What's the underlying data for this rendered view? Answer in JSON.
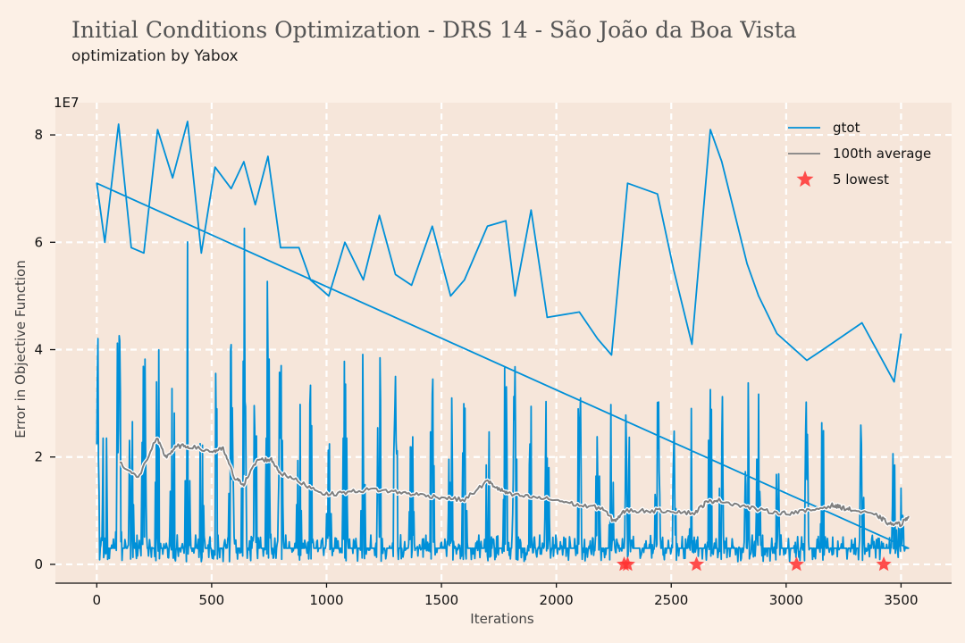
{
  "chart_data": {
    "type": "line",
    "title": "Initial Conditions Optimization - DRS 14 - São João da Boa Vista",
    "subtitle": "optimization by Yabox",
    "xlabel": "Iterations",
    "ylabel": "Error in Objective Function",
    "y_scale_label": "1E7",
    "xlim": [
      -180,
      3720
    ],
    "ylim": [
      -0.35,
      8.6
    ],
    "x_ticks": [
      0,
      500,
      1000,
      1500,
      2000,
      2500,
      3000,
      3500
    ],
    "y_ticks": [
      0,
      2,
      4,
      6,
      8
    ],
    "x_tick_labels": [
      "0",
      "500",
      "1000",
      "1500",
      "2000",
      "2500",
      "3000",
      "3500"
    ],
    "y_tick_labels": [
      "0",
      "2",
      "4",
      "6",
      "8"
    ],
    "grid": true,
    "legend_position": "top-right",
    "series": [
      {
        "name": "gtot",
        "color": "#0090d8",
        "n_points": 3534,
        "x_range": [
          0,
          3533
        ],
        "peaks": [
          [
            0,
            7.1
          ],
          [
            35,
            6.0
          ],
          [
            95,
            8.2
          ],
          [
            150,
            5.9
          ],
          [
            205,
            5.8
          ],
          [
            265,
            8.1
          ],
          [
            330,
            7.2
          ],
          [
            395,
            8.25
          ],
          [
            455,
            5.8
          ],
          [
            515,
            7.4
          ],
          [
            585,
            7.0
          ],
          [
            640,
            7.5
          ],
          [
            690,
            6.7
          ],
          [
            745,
            7.6
          ],
          [
            800,
            5.9
          ],
          [
            880,
            5.9
          ],
          [
            930,
            5.3
          ],
          [
            1010,
            5.0
          ],
          [
            1080,
            6.0
          ],
          [
            1160,
            5.3
          ],
          [
            1230,
            6.5
          ],
          [
            1300,
            5.4
          ],
          [
            1370,
            5.2
          ],
          [
            1460,
            6.3
          ],
          [
            1540,
            5.0
          ],
          [
            1600,
            5.3
          ],
          [
            1700,
            6.3
          ],
          [
            1780,
            6.4
          ],
          [
            1820,
            5.0
          ],
          [
            1890,
            6.6
          ],
          [
            1960,
            4.6
          ],
          [
            2100,
            4.7
          ],
          [
            2180,
            4.2
          ],
          [
            2240,
            3.9
          ],
          [
            2310,
            7.1
          ],
          [
            2440,
            6.9
          ],
          [
            2510,
            5.5
          ],
          [
            2590,
            4.1
          ],
          [
            2670,
            8.1
          ],
          [
            2720,
            7.5
          ],
          [
            2830,
            5.6
          ],
          [
            2880,
            5.0
          ],
          [
            2960,
            4.3
          ],
          [
            3090,
            3.8
          ],
          [
            3160,
            4.0
          ],
          [
            3330,
            4.5
          ],
          [
            3470,
            3.4
          ],
          [
            3500,
            4.3
          ]
        ],
        "trough": 0.05
      },
      {
        "name": "100th average",
        "color": "#808080",
        "x": [
          100,
          180,
          260,
          300,
          350,
          400,
          500,
          550,
          600,
          640,
          700,
          760,
          800,
          900,
          1000,
          1100,
          1200,
          1300,
          1400,
          1500,
          1600,
          1700,
          1750,
          1800,
          1900,
          2000,
          2100,
          2200,
          2250,
          2300,
          2400,
          2500,
          2600,
          2650,
          2700,
          2800,
          2900,
          3000,
          3100,
          3200,
          3250,
          3300,
          3400,
          3450,
          3500,
          3533
        ],
        "y": [
          1.9,
          1.6,
          2.35,
          2.0,
          2.2,
          2.2,
          2.1,
          2.15,
          1.6,
          1.5,
          1.95,
          1.95,
          1.7,
          1.5,
          1.3,
          1.35,
          1.4,
          1.35,
          1.3,
          1.25,
          1.2,
          1.55,
          1.4,
          1.3,
          1.25,
          1.2,
          1.1,
          1.05,
          0.8,
          1.0,
          1.0,
          1.0,
          0.95,
          1.15,
          1.2,
          1.1,
          1.0,
          0.95,
          1.0,
          1.1,
          1.05,
          1.0,
          0.9,
          0.75,
          0.75,
          0.9
        ]
      },
      {
        "name": "5 lowest",
        "color": "#ff3030",
        "type": "scatter",
        "marker": "star",
        "x": [
          2295,
          2310,
          2610,
          3045,
          3425
        ],
        "y": [
          0.0,
          0.0,
          0.0,
          0.0,
          0.0
        ]
      }
    ]
  }
}
